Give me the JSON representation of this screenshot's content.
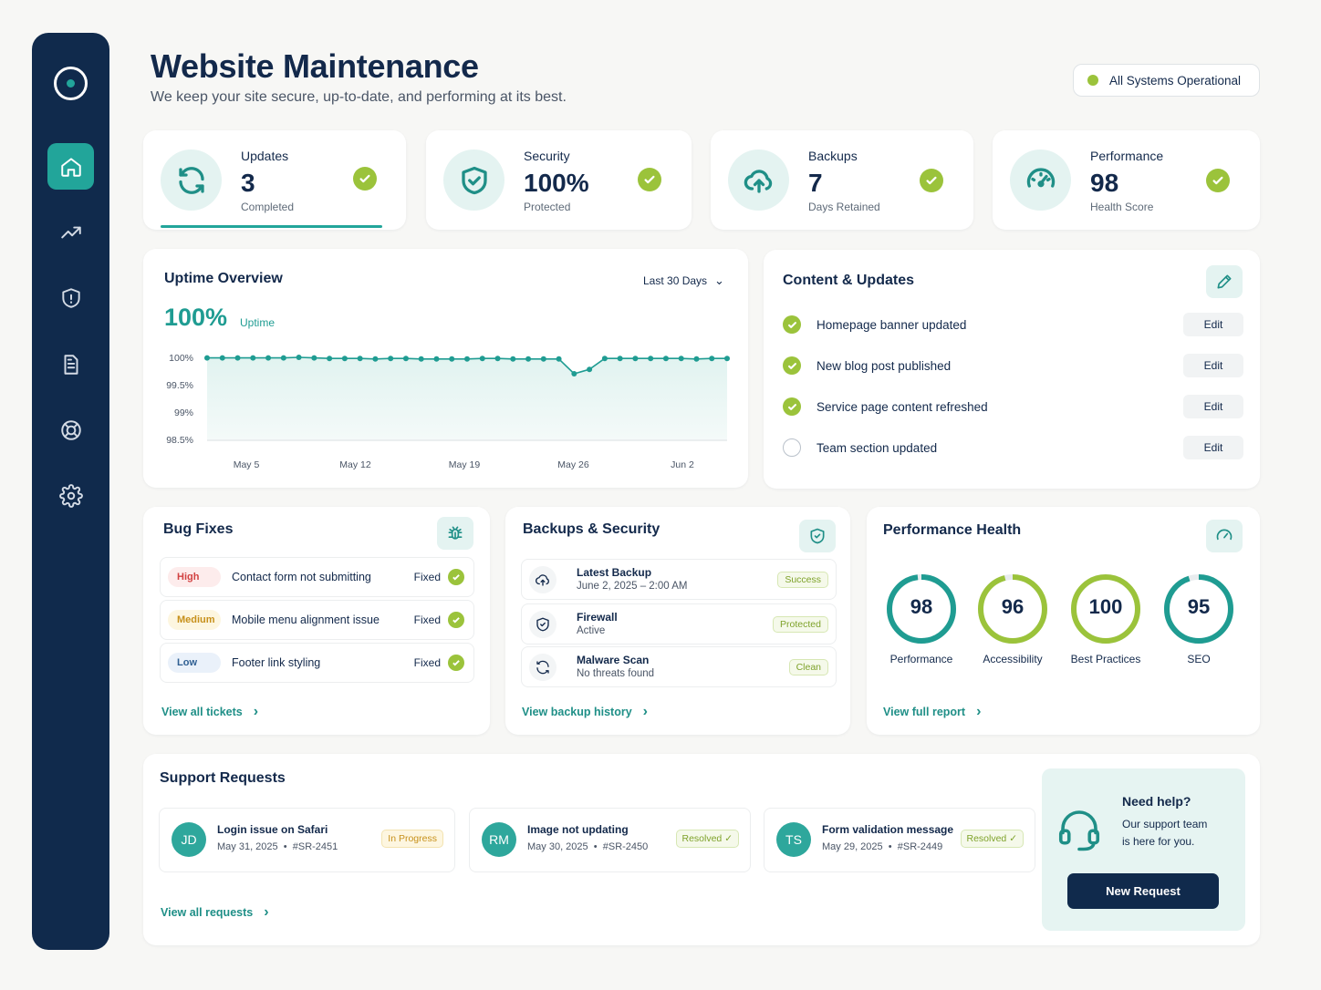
{
  "header": {
    "title": "Website Maintenance",
    "subtitle": "We keep your site secure, up-to-date, and performing at its best.",
    "status": "All Systems Operational",
    "status_color": "#9bc33b"
  },
  "sidebar": {
    "items": [
      {
        "name": "home-icon"
      },
      {
        "name": "analytics-icon"
      },
      {
        "name": "shield-icon"
      },
      {
        "name": "document-icon"
      },
      {
        "name": "support-icon"
      },
      {
        "name": "gear-icon"
      }
    ]
  },
  "stats": [
    {
      "label": "Updates",
      "value": "3",
      "sub": "Completed"
    },
    {
      "label": "Security",
      "value": "100%",
      "sub": "Protected"
    },
    {
      "label": "Backups",
      "value": "7",
      "sub": "Days Retained"
    },
    {
      "label": "Performance",
      "value": "98",
      "sub": "Health Score"
    }
  ],
  "uptime": {
    "title": "Uptime Overview",
    "range": "Last 30 Days",
    "value": "100%",
    "value_label": "Uptime"
  },
  "chart_data": {
    "type": "area",
    "title": "Uptime Overview",
    "ylim": [
      98.5,
      100
    ],
    "yticks": [
      "100%",
      "99.5%",
      "99%",
      "98.5%"
    ],
    "xticks": [
      "May 5",
      "May 12",
      "May 19",
      "May 26",
      "Jun 2"
    ],
    "values": [
      99.99,
      99.99,
      99.99,
      99.99,
      99.99,
      99.99,
      100.0,
      99.99,
      99.98,
      99.98,
      99.98,
      99.97,
      99.98,
      99.98,
      99.97,
      99.97,
      99.97,
      99.97,
      99.98,
      99.98,
      99.97,
      99.97,
      99.97,
      99.97,
      99.7,
      99.78,
      99.98,
      99.98,
      99.98,
      99.98,
      99.98,
      99.98,
      99.97,
      99.98,
      99.98
    ],
    "grid": false,
    "colors": {
      "line": "#1f9c92",
      "fill": "#e1f3f0"
    }
  },
  "content": {
    "title": "Content & Updates",
    "items": [
      {
        "text": "Homepage banner updated",
        "done": true,
        "action": "Edit"
      },
      {
        "text": "New blog post published",
        "done": true,
        "action": "Edit"
      },
      {
        "text": "Service page content refreshed",
        "done": true,
        "action": "Edit"
      },
      {
        "text": "Team section updated",
        "done": false,
        "action": "Edit"
      }
    ]
  },
  "bugs": {
    "title": "Bug Fixes",
    "link": "View all tickets",
    "items": [
      {
        "severity": "High",
        "text": "Contact form not submitting",
        "status": "Fixed"
      },
      {
        "severity": "Medium",
        "text": "Mobile menu alignment issue",
        "status": "Fixed"
      },
      {
        "severity": "Low",
        "text": "Footer link styling",
        "status": "Fixed"
      }
    ]
  },
  "backups": {
    "title": "Backups & Security",
    "link": "View backup history",
    "items": [
      {
        "title": "Latest Backup",
        "sub": "June 2, 2025 – 2:00 AM",
        "badge": "Success"
      },
      {
        "title": "Firewall",
        "sub": "Active",
        "badge": "Protected"
      },
      {
        "title": "Malware Scan",
        "sub": "No threats found",
        "badge": "Clean"
      }
    ]
  },
  "performance": {
    "title": "Performance Health",
    "link": "View full report",
    "gauges": [
      {
        "value": "98",
        "label": "Performance",
        "fraction": 0.98,
        "color": "#1f9c92"
      },
      {
        "value": "96",
        "label": "Accessibility",
        "fraction": 0.96,
        "color": "#9bc33b"
      },
      {
        "value": "100",
        "label": "Best Practices",
        "fraction": 1.0,
        "color": "#9bc33b"
      },
      {
        "value": "95",
        "label": "SEO",
        "fraction": 0.95,
        "color": "#1f9c92"
      }
    ]
  },
  "support": {
    "title": "Support Requests",
    "link": "View all requests",
    "items": [
      {
        "initials": "JD",
        "title": "Login issue on Safari",
        "date": "May 31, 2025",
        "id": "#SR-2451",
        "status": "In Progress"
      },
      {
        "initials": "RM",
        "title": "Image not updating",
        "date": "May 30, 2025",
        "id": "#SR-2450",
        "status": "Resolved ✓"
      },
      {
        "initials": "TS",
        "title": "Form validation message",
        "date": "May 29, 2025",
        "id": "#SR-2449",
        "status": "Resolved ✓"
      }
    ],
    "help": {
      "title": "Need help?",
      "text1": "Our support team",
      "text2": "is here for you.",
      "button": "New Request"
    }
  }
}
